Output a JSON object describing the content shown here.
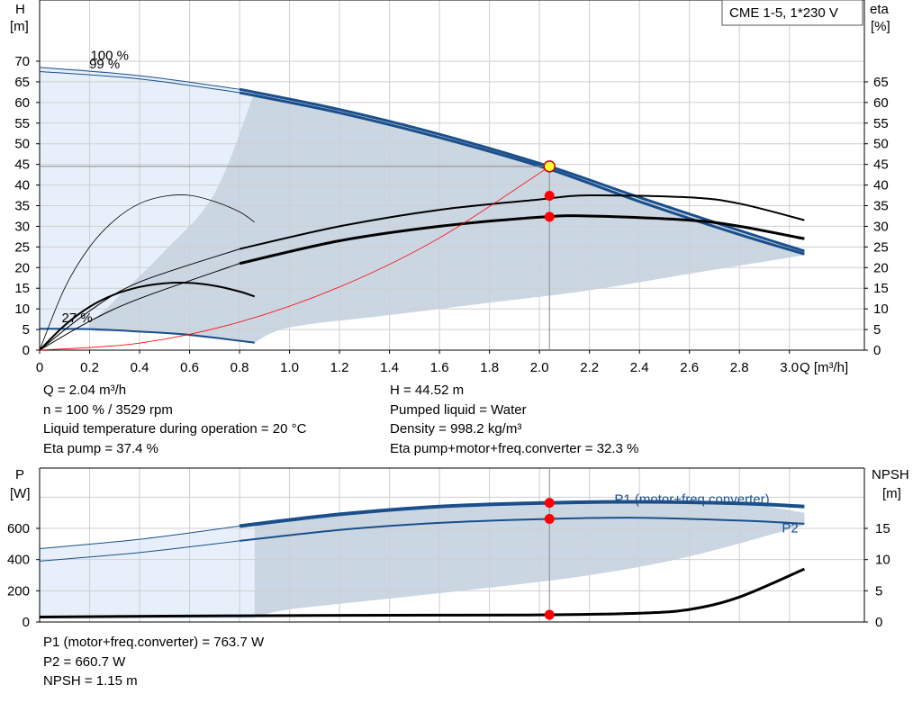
{
  "title_box": "CME 1-5, 1*230 V",
  "chart_data": [
    {
      "type": "line",
      "name": "pump-curve",
      "y_label_lines": [
        "H",
        "[m]"
      ],
      "y2_label_lines": [
        "eta",
        "[%]"
      ],
      "x_label": "Q [m³/h]",
      "xlim": [
        0,
        3.3
      ],
      "ylim": [
        0,
        70
      ],
      "x_ticks": [
        "0",
        "0.2",
        "0.4",
        "0.6",
        "0.8",
        "1.0",
        "1.2",
        "1.4",
        "1.6",
        "1.8",
        "2.0",
        "2.2",
        "2.4",
        "2.6",
        "2.8",
        "3.0"
      ],
      "y_ticks": [
        "0",
        "5",
        "10",
        "15",
        "20",
        "25",
        "30",
        "35",
        "40",
        "45",
        "50",
        "55",
        "60",
        "65",
        "70"
      ],
      "y2_ticks": [
        "0",
        "5",
        "10",
        "15",
        "20",
        "25",
        "30",
        "35",
        "40",
        "45",
        "50",
        "55",
        "60",
        "65"
      ],
      "grid": true,
      "speed_labels": [
        {
          "text": "100 %",
          "x": 0.28,
          "y": 70.3
        },
        {
          "text": "99 %",
          "x": 0.26,
          "y": 68.3
        },
        {
          "text": "27 %",
          "x": 0.15,
          "y": 6.8
        }
      ],
      "operating_point": {
        "q": 2.04,
        "h": 44.52,
        "eta_pump": 37.4,
        "eta_total": 32.3
      },
      "series": [
        {
          "role": "head-100",
          "values": [
            [
              0,
              68.5
            ],
            [
              0.4,
              66.5
            ],
            [
              0.8,
              63.2
            ],
            [
              1.2,
              58.3
            ],
            [
              1.6,
              52.3
            ],
            [
              2.04,
              44.5
            ],
            [
              2.4,
              37.0
            ],
            [
              2.8,
              29.0
            ],
            [
              3.06,
              24.0
            ]
          ]
        },
        {
          "role": "head-99",
          "values": [
            [
              0,
              67.5
            ],
            [
              0.4,
              65.7
            ],
            [
              0.8,
              62.4
            ],
            [
              1.2,
              57.5
            ],
            [
              1.6,
              51.5
            ],
            [
              2.04,
              43.8
            ],
            [
              2.4,
              36.0
            ],
            [
              2.8,
              28.0
            ],
            [
              3.06,
              23.3
            ]
          ]
        },
        {
          "role": "head-27",
          "values": [
            [
              0,
              5.2
            ],
            [
              0.2,
              5.1
            ],
            [
              0.4,
              4.5
            ],
            [
              0.6,
              3.7
            ],
            [
              0.86,
              1.8
            ]
          ]
        },
        {
          "role": "eta-pump-full",
          "values": [
            [
              0,
              0
            ],
            [
              0.2,
              9.5
            ],
            [
              0.4,
              16.5
            ],
            [
              0.8,
              24.5
            ],
            [
              1.2,
              30.0
            ],
            [
              1.6,
              34.0
            ],
            [
              2.0,
              36.5
            ],
            [
              2.2,
              37.5
            ],
            [
              2.6,
              37.0
            ],
            [
              2.8,
              35.5
            ],
            [
              3.06,
              31.5
            ]
          ]
        },
        {
          "role": "eta-total-full",
          "values": [
            [
              0,
              0
            ],
            [
              0.2,
              7.0
            ],
            [
              0.4,
              12.5
            ],
            [
              0.8,
              21.0
            ],
            [
              1.2,
              26.5
            ],
            [
              1.6,
              30.0
            ],
            [
              2.0,
              32.2
            ],
            [
              2.2,
              32.5
            ],
            [
              2.6,
              31.5
            ],
            [
              2.8,
              30.0
            ],
            [
              3.06,
              27.0
            ]
          ]
        },
        {
          "role": "eta-pump-low",
          "values": [
            [
              0,
              0
            ],
            [
              0.1,
              15.0
            ],
            [
              0.2,
              25.0
            ],
            [
              0.3,
              31.5
            ],
            [
              0.4,
              35.5
            ],
            [
              0.5,
              37.3
            ],
            [
              0.6,
              37.5
            ],
            [
              0.7,
              36.0
            ],
            [
              0.8,
              33.5
            ],
            [
              0.86,
              31.0
            ]
          ]
        },
        {
          "role": "eta-total-low",
          "values": [
            [
              0,
              0
            ],
            [
              0.1,
              6.0
            ],
            [
              0.2,
              10.5
            ],
            [
              0.3,
              13.5
            ],
            [
              0.4,
              15.3
            ],
            [
              0.5,
              16.2
            ],
            [
              0.6,
              16.3
            ],
            [
              0.7,
              15.6
            ],
            [
              0.8,
              14.2
            ],
            [
              0.86,
              13.0
            ]
          ]
        },
        {
          "role": "system-curve",
          "values": [
            [
              0,
              0
            ],
            [
              0.4,
              1.7
            ],
            [
              0.8,
              6.8
            ],
            [
              1.2,
              15.3
            ],
            [
              1.6,
              27.2
            ],
            [
              2.04,
              44.5
            ]
          ]
        }
      ]
    },
    {
      "type": "line",
      "name": "power-curve",
      "y_label_lines": [
        "P",
        "[W]"
      ],
      "y2_label_lines": [
        "NPSH",
        "[m]"
      ],
      "xlim": [
        0,
        3.3
      ],
      "ylim": [
        0,
        880
      ],
      "y_ticks": [
        "0",
        "200",
        "400",
        "600"
      ],
      "y2_ticks": [
        "0",
        "5",
        "10",
        "15"
      ],
      "grid": true,
      "series_labels": [
        {
          "text": "P1 (motor+freq.converter)",
          "x": 2.3,
          "y": 760
        },
        {
          "text": "P2",
          "x": 2.97,
          "y": 575
        }
      ],
      "operating_point": {
        "q": 2.04,
        "p1": 763.7,
        "p2": 660.7,
        "npsh": 1.15
      },
      "series": [
        {
          "role": "p1",
          "values": [
            [
              0,
              470
            ],
            [
              0.4,
              530
            ],
            [
              0.8,
              615
            ],
            [
              1.2,
              690
            ],
            [
              1.6,
              740
            ],
            [
              2.04,
              763.7
            ],
            [
              2.4,
              770
            ],
            [
              2.8,
              760
            ],
            [
              3.06,
              740
            ]
          ]
        },
        {
          "role": "p2",
          "values": [
            [
              0,
              390
            ],
            [
              0.4,
              445
            ],
            [
              0.8,
              520
            ],
            [
              1.2,
              590
            ],
            [
              1.6,
              635
            ],
            [
              2.04,
              660.7
            ],
            [
              2.4,
              668
            ],
            [
              2.8,
              650
            ],
            [
              3.06,
              630
            ]
          ]
        },
        {
          "role": "npsh",
          "values": [
            [
              0,
              0.8
            ],
            [
              0.8,
              1.0
            ],
            [
              1.6,
              1.1
            ],
            [
              2.04,
              1.15
            ],
            [
              2.4,
              1.4
            ],
            [
              2.6,
              2.0
            ],
            [
              2.8,
              4.0
            ],
            [
              3.06,
              8.5
            ]
          ]
        }
      ]
    }
  ],
  "info_top_left": [
    "Q = 2.04 m³/h",
    "n = 100 % / 3529 rpm",
    "Liquid temperature during operation = 20 °C",
    "Eta pump = 37.4 %"
  ],
  "info_top_right": [
    "H = 44.52 m",
    "Pumped liquid = Water",
    "Density = 998.2 kg/m³",
    "Eta pump+motor+freq.converter = 32.3 %"
  ],
  "info_bottom": [
    "P1 (motor+freq.converter) = 763.7 W",
    "P2 = 660.7 W",
    "NPSH = 1.15 m"
  ],
  "colors": {
    "head_curve": "#1a4f8b",
    "region_fill": "#cbd6e3",
    "region_light": "#e7f0fa",
    "grid": "#cfcfcf",
    "marker": "#ff0000",
    "system_curve": "#ff0000"
  }
}
